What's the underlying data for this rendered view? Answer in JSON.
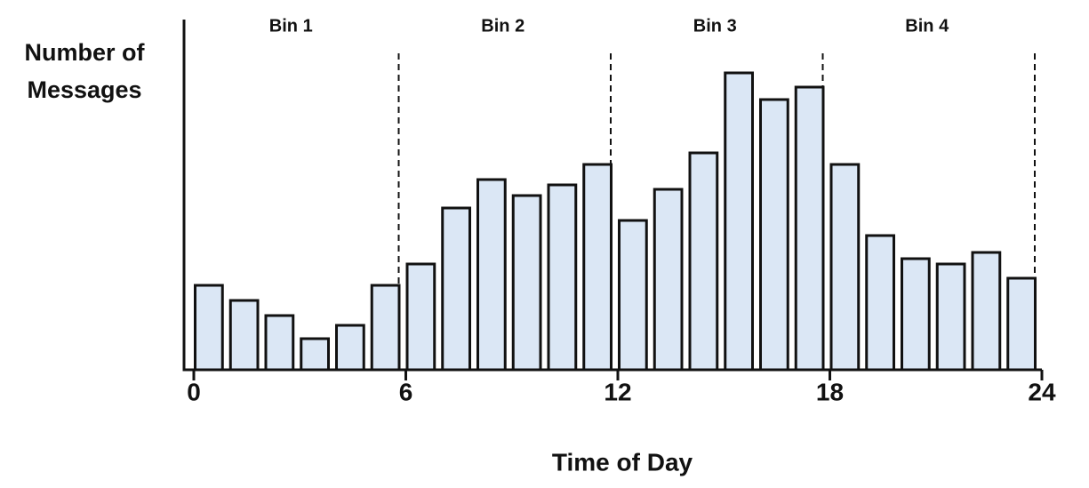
{
  "chart_data": {
    "type": "histogram",
    "ylabel": "Number of Messages",
    "xlabel": "Time of Day",
    "bins": [
      0,
      1,
      2,
      3,
      4,
      5,
      6,
      7,
      8,
      9,
      10,
      11,
      12,
      13,
      14,
      15,
      16,
      17,
      18,
      19,
      20,
      21,
      22,
      23,
      24
    ],
    "values": [
      95,
      78,
      61,
      35,
      50,
      95,
      119,
      182,
      214,
      196,
      208,
      231,
      168,
      203,
      244,
      334,
      304,
      318,
      231,
      151,
      125,
      119,
      132,
      103
    ],
    "color": "#dbe7f5",
    "xlim": [
      0,
      24
    ],
    "xticks": [
      0,
      6,
      12,
      18,
      24
    ],
    "ylim": [
      0,
      394
    ],
    "regions": [
      {
        "label": "Bin 1",
        "x": [
          0,
          6
        ]
      },
      {
        "label": "Bin 2",
        "x": [
          6,
          12
        ]
      },
      {
        "label": "Bin 3",
        "x": [
          12,
          18
        ]
      },
      {
        "label": "Bin 4",
        "x": [
          18,
          24
        ]
      }
    ]
  }
}
